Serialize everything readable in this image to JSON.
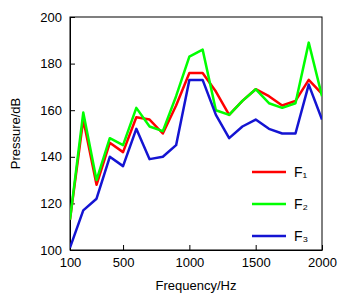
{
  "chart_data": {
    "type": "line",
    "xlabel": "Frequency/Hz",
    "ylabel": "Pressure/dB",
    "x": [
      100,
      200,
      300,
      400,
      500,
      600,
      700,
      800,
      900,
      1000,
      1100,
      1200,
      1300,
      1400,
      1500,
      1600,
      1700,
      1800,
      1900,
      2000
    ],
    "series": [
      {
        "name": "F₁",
        "color": "#ff0000",
        "values": [
          113,
          156,
          128,
          146,
          142,
          157,
          156,
          150,
          162,
          176,
          176,
          168,
          158,
          164,
          169,
          166,
          162,
          164,
          173,
          167
        ]
      },
      {
        "name": "F₂",
        "color": "#00ff00",
        "values": [
          113,
          159,
          130,
          148,
          145,
          161,
          153,
          151,
          166,
          183,
          186,
          160,
          158,
          164,
          169,
          163,
          161,
          163,
          189,
          166
        ]
      },
      {
        "name": "F₃",
        "color": "#1414d2",
        "values": [
          101,
          117,
          122,
          140,
          136,
          152,
          139,
          140,
          145,
          173,
          173,
          158,
          148,
          153,
          156,
          152,
          150,
          150,
          171,
          156
        ]
      }
    ],
    "xlim": [
      100,
      2000
    ],
    "xticks": [
      100,
      500,
      1000,
      1500,
      2000
    ],
    "ylim": [
      100,
      200
    ],
    "yticks": [
      100,
      120,
      140,
      160,
      180,
      200
    ],
    "grid": false,
    "legend": "lower right"
  }
}
